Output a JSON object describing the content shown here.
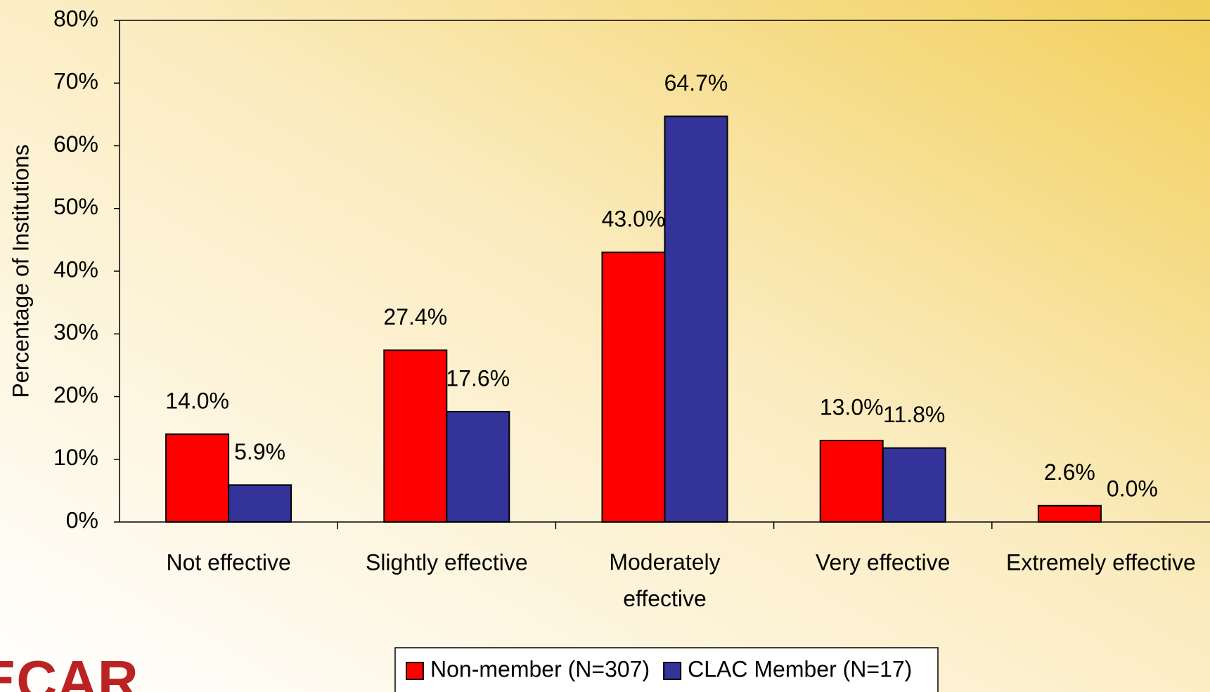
{
  "chart_data": {
    "type": "bar",
    "y_label": "Percentage of Institutions",
    "categories": [
      "Not effective",
      "Slightly effective",
      "Moderately\neffective",
      "Very effective",
      "Extremely effective"
    ],
    "series": [
      {
        "name": "Non-member (N=307)",
        "color": "#ff0000",
        "values": [
          14.0,
          27.4,
          43.0,
          13.0,
          2.6
        ],
        "value_labels": [
          "14.0%",
          "27.4%",
          "43.0%",
          "13.0%",
          "2.6%"
        ]
      },
      {
        "name": "CLAC Member (N=17)",
        "color": "#333399",
        "values": [
          5.9,
          17.6,
          64.7,
          11.8,
          0.0
        ],
        "value_labels": [
          "5.9%",
          "17.6%",
          "64.7%",
          "11.8%",
          "0.0%"
        ]
      }
    ],
    "ylim": [
      0,
      80
    ],
    "yticks": [
      {
        "value": 0,
        "label": "0%"
      },
      {
        "value": 10,
        "label": "10%"
      },
      {
        "value": 20,
        "label": "20%"
      },
      {
        "value": 30,
        "label": "30%"
      },
      {
        "value": 40,
        "label": "40%"
      },
      {
        "value": 50,
        "label": "50%"
      },
      {
        "value": 60,
        "label": "60%"
      },
      {
        "value": 70,
        "label": "70%"
      },
      {
        "value": 80,
        "label": "80%"
      }
    ],
    "legend": "bottom",
    "logo": "ECAR"
  }
}
